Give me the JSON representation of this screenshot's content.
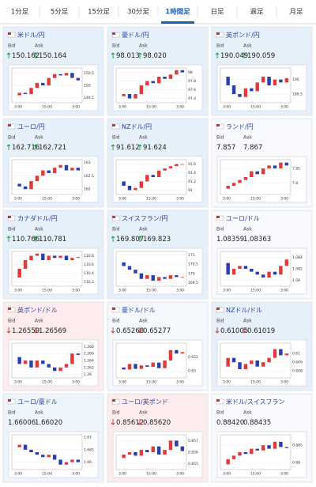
{
  "tabs": [
    "1分足",
    "5分足",
    "15分足",
    "30分足",
    "1時間足",
    "日足",
    "週足",
    "月足"
  ],
  "active_tab": 4,
  "labels": {
    "bid": "Bid",
    "ask": "Ask"
  },
  "chart_xlabels": [
    "3:00",
    "15:00",
    "3:00"
  ],
  "cards": [
    {
      "name": "米ドル/円",
      "bid": "150.162",
      "ask": "150.164",
      "trend": "up",
      "color": "#e6f0fb",
      "ylim": [
        149.3,
        150.7
      ],
      "yticks": [
        150.5,
        150,
        149.5
      ],
      "values": [
        149.6,
        149.7,
        149.65,
        149.9,
        150.1,
        150.0,
        150.3,
        150.45,
        150.4,
        150.5,
        150.3,
        150.2
      ]
    },
    {
      "name": "豪ドル/円",
      "bid": "98.013",
      "ask": "98.020",
      "trend": "up",
      "color": "#e6f0fb",
      "ylim": [
        97.3,
        98.1
      ],
      "yticks": [
        98,
        97.8,
        97.6,
        97.4
      ],
      "values": [
        97.45,
        97.5,
        97.4,
        97.5,
        97.7,
        97.8,
        97.75,
        97.9,
        97.85,
        97.95,
        98.05,
        98.0
      ]
    },
    {
      "name": "英ポンド/円",
      "bid": "190.049",
      "ask": "190.059",
      "trend": "up",
      "color": "#e6f0fb",
      "ylim": [
        189.2,
        190.4
      ],
      "yticks": [
        190,
        189.5
      ],
      "values": [
        190.1,
        189.8,
        189.5,
        189.4,
        189.7,
        189.6,
        189.9,
        190.1,
        189.8,
        190.0,
        189.9,
        190.05
      ]
    },
    {
      "name": "ユーロ/円",
      "bid": "162.716",
      "ask": "162.721",
      "trend": "up",
      "color": "#e6f0fb",
      "ylim": [
        161.8,
        163.1
      ],
      "yticks": [
        163,
        162.5,
        162
      ],
      "values": [
        162.2,
        162.1,
        162.0,
        162.3,
        162.5,
        162.7,
        162.6,
        162.8,
        162.9,
        162.7,
        162.8,
        162.7
      ]
    },
    {
      "name": "NZドル/円",
      "bid": "91.612",
      "ask": "91.624",
      "trend": "up",
      "color": "#e6f0fb",
      "ylim": [
        90.9,
        91.7
      ],
      "yticks": [
        91.6,
        91.4,
        91.2,
        91
      ],
      "values": [
        91.2,
        91.1,
        91.0,
        91.05,
        91.2,
        91.35,
        91.3,
        91.45,
        91.5,
        91.55,
        91.6,
        91.6
      ]
    },
    {
      "name": "ランド/円",
      "bid": "7.857",
      "ask": "7.867",
      "trend": null,
      "color": "#f7f9fc",
      "ylim": [
        7.76,
        7.88
      ],
      "yticks": [
        7.85,
        7.8
      ],
      "values": [
        7.78,
        7.79,
        7.8,
        7.81,
        7.82,
        7.84,
        7.83,
        7.85,
        7.86,
        7.85,
        7.87,
        7.86
      ]
    },
    {
      "name": "カナダドル/円",
      "bid": "110.766",
      "ask": "110.781",
      "trend": "up",
      "color": "#e6f0fb",
      "ylim": [
        110.1,
        110.9
      ],
      "yticks": [
        110.8,
        110.6,
        110.4,
        110.2
      ],
      "values": [
        110.3,
        110.5,
        110.7,
        110.8,
        110.85,
        110.7,
        110.8,
        110.75,
        110.8,
        110.7,
        110.75,
        110.77
      ]
    },
    {
      "name": "スイスフラン/円",
      "bid": "169.807",
      "ask": "169.823",
      "trend": "up",
      "color": "#e6f0fb",
      "ylim": [
        169.3,
        171.2
      ],
      "yticks": [
        171,
        170.5,
        170,
        169.5
      ],
      "values": [
        170.6,
        170.4,
        170.2,
        170.0,
        169.7,
        169.9,
        169.6,
        169.8,
        169.7,
        169.9,
        169.8,
        169.8
      ]
    },
    {
      "name": "ユーロ/ドル",
      "bid": "1.08359",
      "ask": "1.08363",
      "trend": null,
      "color": "#f7f9fc",
      "ylim": [
        1.079,
        1.085
      ],
      "yticks": [
        1.084,
        1.082,
        1.08
      ],
      "values": [
        1.083,
        1.081,
        1.082,
        1.0825,
        1.082,
        1.0815,
        1.081,
        1.0805,
        1.0815,
        1.081,
        1.0825,
        1.0836
      ]
    },
    {
      "name": "英ポンド/ドル",
      "bid": "1.26559",
      "ask": "1.26569",
      "trend": "down",
      "color": "#fdeced",
      "ylim": [
        1.259,
        1.269
      ],
      "yticks": [
        1.268,
        1.266,
        1.264,
        1.262,
        1.26
      ],
      "values": [
        1.265,
        1.263,
        1.264,
        1.262,
        1.264,
        1.263,
        1.262,
        1.261,
        1.262,
        1.263,
        1.266,
        1.2656
      ]
    },
    {
      "name": "豪ドル/ドル",
      "bid": "0.65268",
      "ask": "0.65277",
      "trend": "down",
      "color": "#f4f7fb",
      "ylim": [
        0.649,
        0.654
      ],
      "yticks": [
        0.652,
        0.65
      ],
      "values": [
        0.6505,
        0.6502,
        0.651,
        0.6503,
        0.6508,
        0.6506,
        0.6512,
        0.6504,
        0.6515,
        0.653,
        0.6525,
        0.6527
      ]
    },
    {
      "name": "NZドル/ドル",
      "bid": "0.61005",
      "ask": "0.61019",
      "trend": "down",
      "color": "#e6f0fb",
      "ylim": [
        0.6072,
        0.6112
      ],
      "yticks": [
        0.61,
        0.609,
        0.608
      ],
      "values": [
        0.6085,
        0.6095,
        0.609,
        0.6082,
        0.6088,
        0.6092,
        0.6085,
        0.609,
        0.6095,
        0.6105,
        0.6098,
        0.61
      ]
    },
    {
      "name": "ユーロ/豪ドル",
      "bid": "1.66006",
      "ask": "1.66020",
      "trend": null,
      "color": "#eef4fb",
      "ylim": [
        1.657,
        1.671
      ],
      "yticks": [
        1.67,
        1.665,
        1.66
      ],
      "values": [
        1.666,
        1.667,
        1.665,
        1.664,
        1.663,
        1.662,
        1.663,
        1.661,
        1.659,
        1.66,
        1.661,
        1.66
      ]
    },
    {
      "name": "ユーロ/英ポンド",
      "bid": "0.85612",
      "ask": "0.85620",
      "trend": "down",
      "color": "#fdeced",
      "ylim": [
        0.8545,
        0.8575
      ],
      "yticks": [
        0.857,
        0.856,
        0.855
      ],
      "values": [
        0.8555,
        0.8558,
        0.856,
        0.8557,
        0.8562,
        0.856,
        0.8565,
        0.8558,
        0.8562,
        0.857,
        0.8565,
        0.8561
      ]
    },
    {
      "name": "米ドル/スイスフラン",
      "bid": "0.88420",
      "ask": "0.88435",
      "trend": null,
      "color": "#f7f9fc",
      "ylim": [
        0.878,
        0.888
      ],
      "yticks": [
        0.885,
        0.88
      ],
      "values": [
        0.8795,
        0.881,
        0.882,
        0.883,
        0.8825,
        0.884,
        0.8835,
        0.885,
        0.884,
        0.886,
        0.8845,
        0.8842
      ]
    }
  ]
}
